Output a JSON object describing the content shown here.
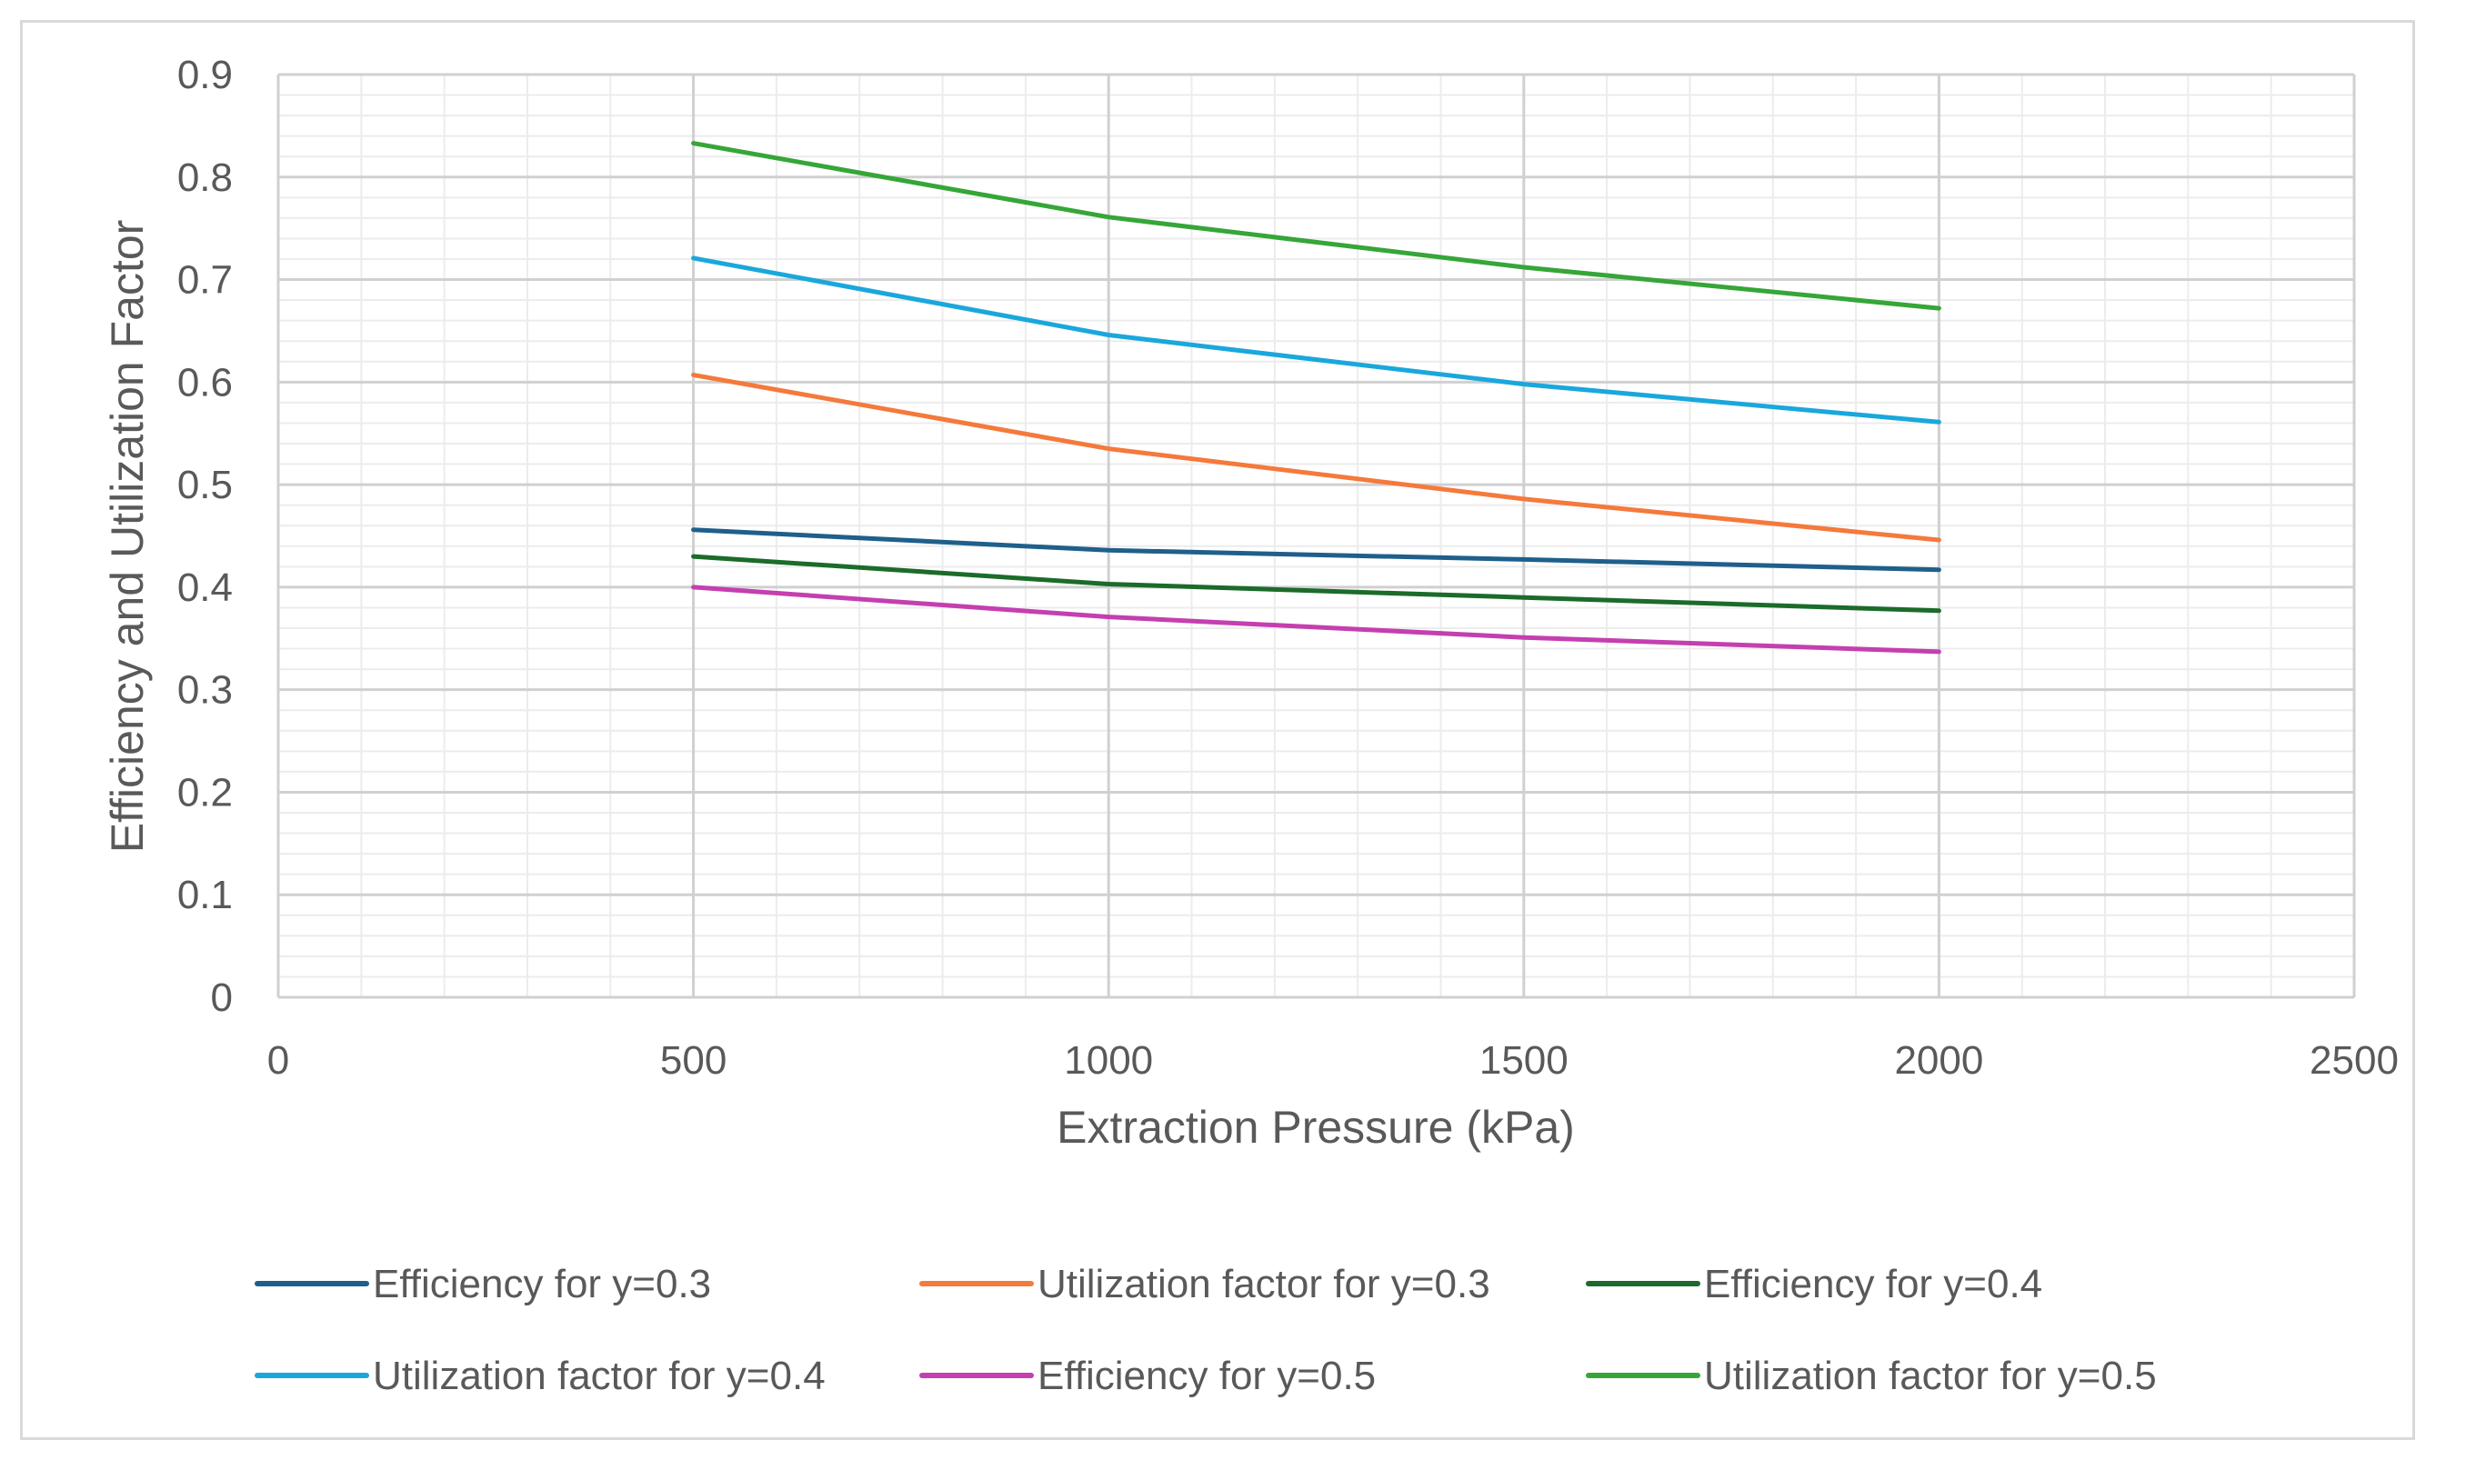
{
  "chart_data": {
    "type": "line",
    "title": "",
    "xlabel": "Extraction Pressure (kPa)",
    "ylabel": "Efficiency and Utilization Factor",
    "xlim": [
      0,
      2500
    ],
    "ylim": [
      0,
      0.9
    ],
    "x_ticks": [
      "0",
      "500",
      "1000",
      "1500",
      "2000",
      "2500"
    ],
    "y_ticks": [
      "0",
      "0.1",
      "0.2",
      "0.3",
      "0.4",
      "0.5",
      "0.6",
      "0.7",
      "0.8",
      "0.9"
    ],
    "grid": true,
    "legend_position": "bottom",
    "x": [
      500,
      1000,
      1500,
      2000
    ],
    "series": [
      {
        "name": "Efficiency for y=0.3",
        "color": "#1f5f8b",
        "values": [
          0.456,
          0.436,
          0.427,
          0.417
        ]
      },
      {
        "name": "Utilization factor for y=0.3",
        "color": "#f47a3c",
        "values": [
          0.607,
          0.535,
          0.486,
          0.446
        ]
      },
      {
        "name": "Efficiency for y=0.4",
        "color": "#1b6b2a",
        "values": [
          0.43,
          0.403,
          0.39,
          0.377
        ]
      },
      {
        "name": "Utilization factor for y=0.4",
        "color": "#1aa7dc",
        "values": [
          0.721,
          0.646,
          0.598,
          0.561
        ]
      },
      {
        "name": "Efficiency for y=0.5",
        "color": "#c43fb0",
        "values": [
          0.4,
          0.371,
          0.351,
          0.337
        ]
      },
      {
        "name": "Utilization factor for y=0.5",
        "color": "#35a637",
        "values": [
          0.833,
          0.761,
          0.712,
          0.672
        ]
      }
    ]
  }
}
